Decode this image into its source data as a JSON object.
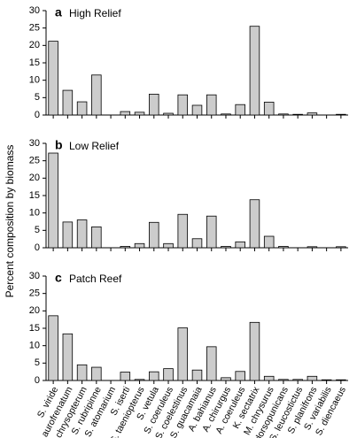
{
  "chart_data": {
    "type": "bar",
    "y_label": "Percent composition by biomass",
    "categories": [
      "S. viride",
      "S. aurofrenatum",
      "S. chrysopterum",
      "S. rubripinne",
      "S. atomarium",
      "S. iserti",
      "S. taeniopterus",
      "S. vetula",
      "S. coeruleus",
      "S. coelestinus",
      "S. guacamaia",
      "A. bahianus",
      "A. chirurgus",
      "A. coeruleus",
      "K. sectatrix",
      "M. chrysurus",
      "S. dorsopunicans",
      "S. leucostictus",
      "S. planifrons",
      "S. variabilis",
      "S. diencaeus"
    ],
    "color": "#cccccc",
    "ylim": [
      0,
      30
    ],
    "yticks": [
      0,
      5,
      10,
      15,
      20,
      25,
      30
    ],
    "panels": [
      {
        "letter": "a",
        "title": "High Relief",
        "values": [
          21.2,
          7.1,
          3.8,
          11.5,
          0,
          1.0,
          0.8,
          6.0,
          0.5,
          5.8,
          2.8,
          5.8,
          0.3,
          3.0,
          25.5,
          3.7,
          0.3,
          0.2,
          0.6,
          0,
          0.2
        ]
      },
      {
        "letter": "b",
        "title": "Low Relief",
        "values": [
          27.2,
          7.4,
          8.0,
          6.0,
          0,
          0.4,
          1.2,
          7.3,
          1.2,
          9.6,
          2.6,
          9.1,
          0.4,
          1.7,
          13.8,
          3.3,
          0.4,
          0,
          0.3,
          0,
          0.3
        ]
      },
      {
        "letter": "c",
        "title": "Patch Reef",
        "values": [
          18.6,
          13.4,
          4.5,
          3.8,
          0,
          2.4,
          0.3,
          2.5,
          3.4,
          15.1,
          3.0,
          9.7,
          0.8,
          2.6,
          16.7,
          1.2,
          0.3,
          0.3,
          1.2,
          0.2,
          0.2
        ]
      }
    ]
  }
}
